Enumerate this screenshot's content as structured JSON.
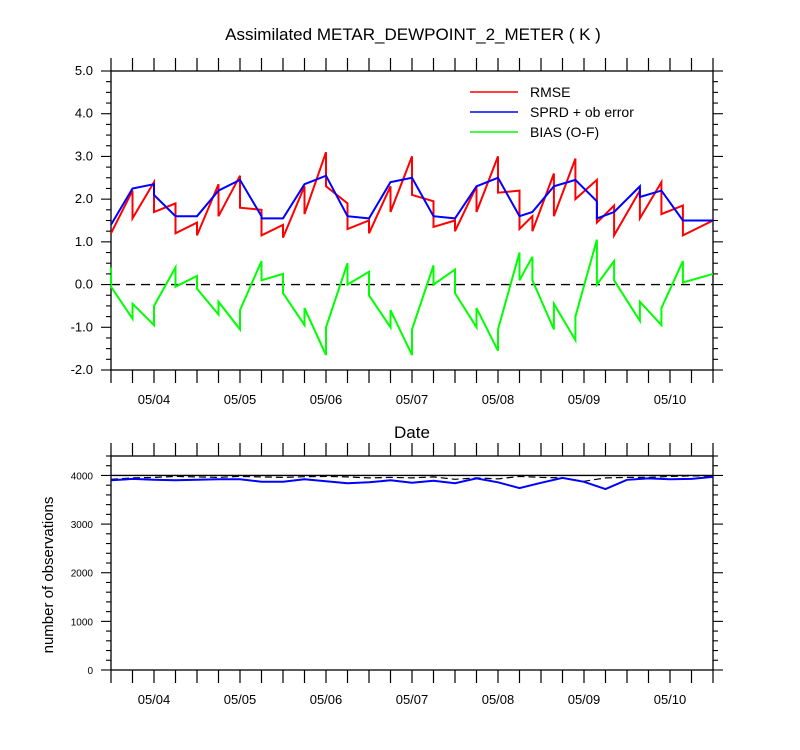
{
  "chart_data": [
    {
      "type": "line",
      "title": "Assimilated METAR_DEWPOINT_2_METER ( K )",
      "xlabel": "Date",
      "ylabel": "",
      "x_unit": "day",
      "xlim": [
        3.5,
        10.5
      ],
      "ylim": [
        -2.0,
        5.0
      ],
      "yticks": [
        -2.0,
        -1.0,
        0.0,
        1.0,
        2.0,
        3.0,
        4.0,
        5.0
      ],
      "ytick_labels": [
        "-2.0",
        "-1.0",
        "0.0",
        "1.0",
        "2.0",
        "3.0",
        "4.0",
        "5.0"
      ],
      "xticks": [
        4,
        5,
        6,
        7,
        8,
        9,
        10
      ],
      "xtick_labels": [
        "05/04",
        "05/05",
        "05/06",
        "05/07",
        "05/08",
        "05/09",
        "05/10"
      ],
      "legend": "top-right",
      "reference_line": {
        "y": 0,
        "style": "dashed"
      },
      "series": [
        {
          "name": "RMSE",
          "color": "#ff0000",
          "points": [
            [
              3.5,
              1.2
            ],
            [
              3.75,
              2.2
            ],
            [
              3.75,
              1.55
            ],
            [
              4.0,
              2.4
            ],
            [
              4.0,
              1.7
            ],
            [
              4.25,
              1.9
            ],
            [
              4.25,
              1.2
            ],
            [
              4.5,
              1.45
            ],
            [
              4.5,
              1.15
            ],
            [
              4.75,
              2.35
            ],
            [
              4.75,
              1.6
            ],
            [
              5.0,
              2.55
            ],
            [
              5.0,
              1.8
            ],
            [
              5.25,
              1.75
            ],
            [
              5.25,
              1.15
            ],
            [
              5.5,
              1.4
            ],
            [
              5.5,
              1.1
            ],
            [
              5.75,
              2.3
            ],
            [
              5.75,
              1.65
            ],
            [
              6.0,
              3.1
            ],
            [
              6.0,
              2.3
            ],
            [
              6.25,
              1.9
            ],
            [
              6.25,
              1.3
            ],
            [
              6.5,
              1.5
            ],
            [
              6.5,
              1.2
            ],
            [
              6.75,
              2.3
            ],
            [
              6.75,
              1.7
            ],
            [
              7.0,
              3.0
            ],
            [
              7.0,
              2.1
            ],
            [
              7.25,
              1.95
            ],
            [
              7.25,
              1.35
            ],
            [
              7.5,
              1.5
            ],
            [
              7.5,
              1.25
            ],
            [
              7.75,
              2.3
            ],
            [
              7.75,
              1.7
            ],
            [
              8.0,
              3.0
            ],
            [
              8.0,
              2.15
            ],
            [
              8.25,
              2.2
            ],
            [
              8.25,
              1.3
            ],
            [
              8.4,
              1.6
            ],
            [
              8.4,
              1.25
            ],
            [
              8.65,
              2.6
            ],
            [
              8.65,
              1.6
            ],
            [
              8.9,
              2.95
            ],
            [
              8.9,
              2.0
            ],
            [
              9.15,
              2.45
            ],
            [
              9.15,
              1.45
            ],
            [
              9.35,
              1.85
            ],
            [
              9.35,
              1.15
            ],
            [
              9.65,
              2.2
            ],
            [
              9.65,
              1.55
            ],
            [
              9.9,
              2.4
            ],
            [
              9.9,
              1.65
            ],
            [
              10.15,
              1.85
            ],
            [
              10.15,
              1.15
            ],
            [
              10.5,
              1.5
            ]
          ]
        },
        {
          "name": "SPRD + ob error",
          "color": "#0000ff",
          "points": [
            [
              3.5,
              1.4
            ],
            [
              3.75,
              2.25
            ],
            [
              3.75,
              2.25
            ],
            [
              4.0,
              2.35
            ],
            [
              4.0,
              2.1
            ],
            [
              4.25,
              1.6
            ],
            [
              4.25,
              1.6
            ],
            [
              4.5,
              1.6
            ],
            [
              4.75,
              2.2
            ],
            [
              5.0,
              2.45
            ],
            [
              5.25,
              1.6
            ],
            [
              5.25,
              1.55
            ],
            [
              5.5,
              1.55
            ],
            [
              5.75,
              2.35
            ],
            [
              6.0,
              2.55
            ],
            [
              6.25,
              1.6
            ],
            [
              6.5,
              1.55
            ],
            [
              6.75,
              2.4
            ],
            [
              7.0,
              2.5
            ],
            [
              7.25,
              1.6
            ],
            [
              7.5,
              1.55
            ],
            [
              7.75,
              2.3
            ],
            [
              8.0,
              2.5
            ],
            [
              8.25,
              1.6
            ],
            [
              8.4,
              1.7
            ],
            [
              8.65,
              2.3
            ],
            [
              8.9,
              2.45
            ],
            [
              9.15,
              1.95
            ],
            [
              9.15,
              1.55
            ],
            [
              9.35,
              1.7
            ],
            [
              9.65,
              2.3
            ],
            [
              9.65,
              2.05
            ],
            [
              9.9,
              2.2
            ],
            [
              10.15,
              1.5
            ],
            [
              10.5,
              1.5
            ]
          ]
        },
        {
          "name": "BIAS (O-F)",
          "color": "#00ff00",
          "points": [
            [
              3.5,
              0.4
            ],
            [
              3.5,
              -0.05
            ],
            [
              3.75,
              -0.8
            ],
            [
              3.75,
              -0.45
            ],
            [
              4.0,
              -0.95
            ],
            [
              4.0,
              -0.5
            ],
            [
              4.25,
              0.4
            ],
            [
              4.25,
              -0.05
            ],
            [
              4.5,
              0.2
            ],
            [
              4.5,
              -0.1
            ],
            [
              4.75,
              -0.7
            ],
            [
              4.75,
              -0.4
            ],
            [
              5.0,
              -1.05
            ],
            [
              5.0,
              -0.6
            ],
            [
              5.25,
              0.55
            ],
            [
              5.25,
              0.1
            ],
            [
              5.5,
              0.25
            ],
            [
              5.5,
              -0.2
            ],
            [
              5.75,
              -0.95
            ],
            [
              5.75,
              -0.55
            ],
            [
              6.0,
              -1.65
            ],
            [
              6.0,
              -1.0
            ],
            [
              6.25,
              0.5
            ],
            [
              6.25,
              0.0
            ],
            [
              6.5,
              0.3
            ],
            [
              6.5,
              -0.25
            ],
            [
              6.75,
              -1.0
            ],
            [
              6.75,
              -0.6
            ],
            [
              7.0,
              -1.65
            ],
            [
              7.0,
              -1.05
            ],
            [
              7.25,
              0.45
            ],
            [
              7.25,
              0.0
            ],
            [
              7.5,
              0.35
            ],
            [
              7.5,
              -0.2
            ],
            [
              7.75,
              -1.0
            ],
            [
              7.75,
              -0.55
            ],
            [
              8.0,
              -1.55
            ],
            [
              8.0,
              -1.05
            ],
            [
              8.25,
              0.75
            ],
            [
              8.25,
              0.1
            ],
            [
              8.4,
              0.65
            ],
            [
              8.4,
              0.1
            ],
            [
              8.65,
              -1.05
            ],
            [
              8.65,
              -0.45
            ],
            [
              8.9,
              -1.3
            ],
            [
              8.9,
              -0.75
            ],
            [
              9.15,
              1.05
            ],
            [
              9.15,
              0.0
            ],
            [
              9.35,
              0.55
            ],
            [
              9.35,
              0.1
            ],
            [
              9.65,
              -0.85
            ],
            [
              9.65,
              -0.4
            ],
            [
              9.9,
              -0.95
            ],
            [
              9.9,
              -0.55
            ],
            [
              10.15,
              0.55
            ],
            [
              10.15,
              0.05
            ],
            [
              10.5,
              0.25
            ]
          ]
        }
      ]
    },
    {
      "type": "line",
      "title": "",
      "xlabel": "",
      "ylabel": "number of observations",
      "x_unit": "day",
      "xlim": [
        3.5,
        10.5
      ],
      "ylim": [
        0,
        4400
      ],
      "yticks": [
        0,
        1000,
        2000,
        3000,
        4000
      ],
      "ytick_labels": [
        "0",
        "1000",
        "2000",
        "3000",
        "4000"
      ],
      "xticks": [
        4,
        5,
        6,
        7,
        8,
        9,
        10
      ],
      "xtick_labels": [
        "05/04",
        "05/05",
        "05/06",
        "05/07",
        "05/08",
        "05/09",
        "05/10"
      ],
      "reference_line": {
        "y": 4000,
        "style": "solid"
      },
      "series": [
        {
          "color": "#000000",
          "style": "dashed",
          "points": [
            [
              3.5,
              3920
            ],
            [
              3.75,
              3950
            ],
            [
              4.0,
              3960
            ],
            [
              4.25,
              3980
            ],
            [
              4.5,
              3970
            ],
            [
              4.75,
              3960
            ],
            [
              5.0,
              3980
            ],
            [
              5.25,
              3970
            ],
            [
              5.5,
              3960
            ],
            [
              5.75,
              3975
            ],
            [
              6.0,
              3980
            ],
            [
              6.25,
              3970
            ],
            [
              6.5,
              3950
            ],
            [
              6.75,
              3960
            ],
            [
              7.0,
              3950
            ],
            [
              7.25,
              3970
            ],
            [
              7.5,
              3920
            ],
            [
              7.75,
              3950
            ],
            [
              8.0,
              3930
            ],
            [
              8.25,
              3980
            ],
            [
              8.5,
              3960
            ],
            [
              8.75,
              3950
            ],
            [
              9.0,
              3880
            ],
            [
              9.25,
              3950
            ],
            [
              9.5,
              3960
            ],
            [
              9.75,
              3960
            ],
            [
              10.0,
              3980
            ],
            [
              10.25,
              3990
            ],
            [
              10.5,
              3990
            ]
          ]
        },
        {
          "color": "#0000ff",
          "style": "solid",
          "points": [
            [
              3.5,
              3900
            ],
            [
              3.75,
              3930
            ],
            [
              4.0,
              3910
            ],
            [
              4.25,
              3900
            ],
            [
              4.5,
              3910
            ],
            [
              4.75,
              3920
            ],
            [
              5.0,
              3920
            ],
            [
              5.25,
              3870
            ],
            [
              5.5,
              3870
            ],
            [
              5.75,
              3920
            ],
            [
              6.0,
              3880
            ],
            [
              6.25,
              3840
            ],
            [
              6.5,
              3860
            ],
            [
              6.75,
              3900
            ],
            [
              7.0,
              3850
            ],
            [
              7.25,
              3890
            ],
            [
              7.5,
              3840
            ],
            [
              7.75,
              3940
            ],
            [
              8.0,
              3860
            ],
            [
              8.25,
              3740
            ],
            [
              8.5,
              3850
            ],
            [
              8.75,
              3950
            ],
            [
              9.0,
              3870
            ],
            [
              9.25,
              3720
            ],
            [
              9.5,
              3910
            ],
            [
              9.75,
              3940
            ],
            [
              10.0,
              3920
            ],
            [
              10.25,
              3930
            ],
            [
              10.5,
              3970
            ]
          ]
        }
      ]
    }
  ]
}
